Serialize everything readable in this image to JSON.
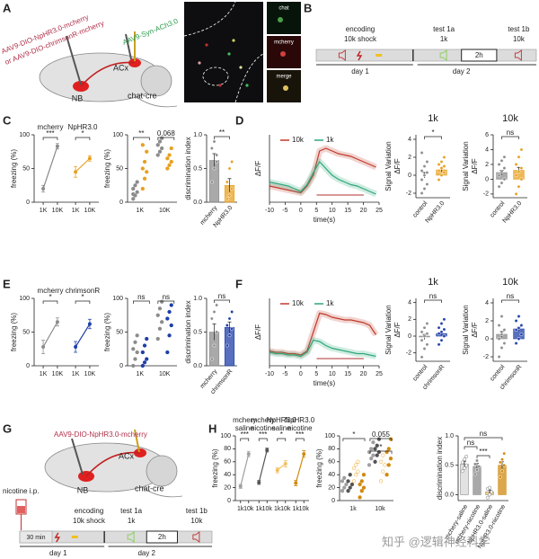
{
  "panels": {
    "A": {
      "label": "A",
      "virus1": "AAV9-DIO-NpHR3.0-mcherry",
      "virus2": "or AAV9-DIO-chrimsonR-mcherry",
      "virus3": "AAV9-Syn-ACh3.0",
      "acx": "ACx",
      "nb": "NB",
      "mouse": "chat-cre",
      "images": [
        "chat",
        "mcherry",
        "merge"
      ]
    },
    "B": {
      "label": "B",
      "encoding": "encoding",
      "shock": "10k shock",
      "test1a": "test 1a",
      "tone1a": "1k",
      "gap": "2h",
      "test1b": "test 1b",
      "tone1b": "10k",
      "day1": "day 1",
      "day2": "day 2"
    },
    "C": {
      "label": "C",
      "line": {
        "type": "pair",
        "ylabel": "freezing (%)",
        "ylim": [
          0,
          100
        ],
        "yticks": [
          0,
          50,
          100
        ],
        "xcats": [
          "1K",
          "10K"
        ],
        "series": [
          {
            "name": [
              "mcherry"
            ],
            "color": "#8c8c8c",
            "values": [
              20,
              83
            ],
            "err": [
              5,
              4
            ]
          },
          {
            "name": [
              "NpHR3.0"
            ],
            "color": "#e8a020",
            "values": [
              45,
              65
            ],
            "err": [
              8,
              4
            ]
          }
        ],
        "stars": [
          "***",
          "*"
        ]
      },
      "dots": {
        "type": "dots",
        "ylabel": "freezing (%)",
        "ylim": [
          0,
          100
        ],
        "yticks": [
          0,
          50,
          100
        ],
        "categories": [
          "1K",
          "10K"
        ],
        "series": [
          {
            "color": "#8c8c8c",
            "points": [
              [
                5,
                10,
                15,
                20,
                25,
                30,
                12
              ],
              [
                70,
                75,
                80,
                85,
                90,
                95
              ]
            ]
          },
          {
            "color": "#e8a020",
            "points": [
              [
                20,
                35,
                45,
                50,
                60,
                75,
                85
              ],
              [
                50,
                55,
                60,
                65,
                70,
                80
              ]
            ]
          }
        ],
        "annotations": [
          "**",
          "0.068"
        ]
      },
      "bar": {
        "type": "bar",
        "ylabel": "discrimination index",
        "ylim": [
          0,
          1
        ],
        "yticks": [
          {
            "value": 0,
            "label": "0.0"
          },
          {
            "value": 0.5,
            "label": "0.5"
          },
          {
            "value": 1,
            "label": "1.0"
          }
        ],
        "categories": [
          "mcherry",
          "NpHR3.0"
        ],
        "colors": [
          "#8c8c8c",
          "#e8a020"
        ],
        "values": [
          0.62,
          0.25
        ],
        "err": [
          0.1,
          0.1
        ],
        "points": [
          [
            0.3,
            0.5,
            0.7,
            0.8,
            0.9,
            0.6
          ],
          [
            0.05,
            0.1,
            0.2,
            0.3,
            0.5,
            0.6
          ]
        ],
        "stars": [
          "**"
        ]
      }
    },
    "D": {
      "label": "D",
      "trace": {
        "type": "trace",
        "ylabel": "ΔF/F",
        "xlabel": "time(s)",
        "xlim": [
          -10,
          25
        ],
        "xticks": [
          -10,
          -5,
          0,
          5,
          10,
          15,
          20,
          25
        ],
        "ylim": [
          -1,
          4
        ],
        "x": [
          -10,
          -8,
          -6,
          -4,
          -2,
          0,
          2,
          4,
          6,
          8,
          10,
          12,
          14,
          16,
          18,
          20,
          22,
          24
        ],
        "series": [
          {
            "name": "10k",
            "color": "#c0392b",
            "values": [
              0.2,
              0.1,
              0,
              -0.1,
              -0.2,
              -0.3,
              0.2,
              1.0,
              2.8,
              3.0,
              2.8,
              2.6,
              2.5,
              2.4,
              2.2,
              2.0,
              1.8,
              1.6
            ]
          },
          {
            "name": "1k",
            "color": "#2ca87a",
            "values": [
              0.5,
              0.4,
              0.3,
              0.2,
              0,
              -0.2,
              0.3,
              1.2,
              2.0,
              1.5,
              1.0,
              0.7,
              0.5,
              0.3,
              0.2,
              0,
              -0.2,
              -0.4
            ]
          }
        ]
      },
      "bar1k": {
        "type": "bar",
        "title": "1k",
        "ylabel": [
          "Signal Variation",
          "ΔF/F"
        ],
        "ylim": [
          -2.5,
          4.5
        ],
        "yticks": [
          -2,
          0,
          2,
          4
        ],
        "categories": [
          "control",
          "NpHR3.0"
        ],
        "colors": [
          "#8c8c8c",
          "#e8a020"
        ],
        "values": [
          0.0,
          0.6
        ],
        "err": [
          0.3,
          0.2
        ],
        "points": [
          [
            -2,
            -1.5,
            -1,
            -0.5,
            0,
            0.3,
            0.5,
            1,
            1.5,
            2.5
          ],
          [
            -0.5,
            0,
            0.3,
            0.5,
            0.8,
            1,
            1.2,
            1.5,
            2
          ]
        ],
        "stars": [
          "*"
        ]
      },
      "bar10k": {
        "type": "bar",
        "title": "10k",
        "ylabel": [
          "Signal Variation",
          "ΔF/F"
        ],
        "ylim": [
          -2.5,
          6
        ],
        "yticks": [
          -2,
          0,
          2,
          4,
          6
        ],
        "categories": [
          "control",
          "NpHR3.0"
        ],
        "colors": [
          "#8c8c8c",
          "#e8a020"
        ],
        "values": [
          0.9,
          1.2
        ],
        "err": [
          0.3,
          0.4
        ],
        "points": [
          [
            -1,
            -0.5,
            0,
            0.5,
            1,
            1.5,
            2,
            2.5,
            3
          ],
          [
            -2,
            -1,
            0,
            0.5,
            1,
            1.5,
            2,
            3,
            4
          ]
        ],
        "stars": [
          "ns"
        ]
      }
    },
    "E": {
      "label": "E",
      "line": {
        "type": "pair",
        "ylabel": "freezing (%)",
        "ylim": [
          0,
          100
        ],
        "yticks": [
          0,
          50,
          100
        ],
        "xcats": [
          "1K",
          "10K"
        ],
        "series": [
          {
            "name": [
              "mcherry"
            ],
            "color": "#8c8c8c",
            "values": [
              28,
              65
            ],
            "err": [
              10,
              6
            ]
          },
          {
            "name": [
              "chrimsonR"
            ],
            "color": "#1f3fa8",
            "values": [
              28,
              62
            ],
            "err": [
              8,
              7
            ]
          }
        ],
        "stars": [
          "*",
          "*"
        ]
      },
      "dots": {
        "type": "dots",
        "ylabel": "freezing (%)",
        "ylim": [
          0,
          100
        ],
        "yticks": [
          0,
          50,
          100
        ],
        "categories": [
          "1K",
          "10K"
        ],
        "series": [
          {
            "color": "#8c8c8c",
            "points": [
              [
                0,
                10,
                20,
                25,
                35,
                45
              ],
              [
                40,
                55,
                65,
                75,
                85,
                95
              ]
            ]
          },
          {
            "color": "#1f3fa8",
            "points": [
              [
                0,
                5,
                10,
                20,
                30,
                40
              ],
              [
                20,
                45,
                60,
                70,
                80,
                90
              ]
            ]
          }
        ],
        "annotations": [
          "ns",
          "ns"
        ]
      },
      "bar": {
        "type": "bar",
        "ylabel": "discrimination index",
        "ylim": [
          0,
          1
        ],
        "yticks": [
          {
            "value": 0,
            "label": "0.0"
          },
          {
            "value": 0.5,
            "label": "0.5"
          },
          {
            "value": 1,
            "label": "1.0"
          }
        ],
        "categories": [
          "mcherry",
          "chrimsonR"
        ],
        "colors": [
          "#8c8c8c",
          "#1f3fa8"
        ],
        "values": [
          0.5,
          0.57
        ],
        "err": [
          0.12,
          0.08
        ],
        "points": [
          [
            0.1,
            0.3,
            0.5,
            0.7,
            0.8,
            0.9
          ],
          [
            0.3,
            0.45,
            0.55,
            0.6,
            0.7,
            0.8
          ]
        ],
        "stars": [
          "ns"
        ]
      }
    },
    "F": {
      "label": "F",
      "trace": {
        "type": "trace",
        "ylabel": "ΔF/F",
        "xlabel": "time(s)",
        "xlim": [
          -10,
          25
        ],
        "xticks": [
          -10,
          -5,
          0,
          5,
          10,
          15,
          20,
          25
        ],
        "ylim": [
          -1,
          4
        ],
        "x": [
          -10,
          -8,
          -6,
          -4,
          -2,
          0,
          2,
          4,
          6,
          8,
          10,
          12,
          14,
          16,
          18,
          20,
          22,
          24
        ],
        "series": [
          {
            "name": "10k",
            "color": "#c0392b",
            "values": [
              0.1,
              0,
              0,
              -0.1,
              -0.1,
              -0.2,
              0.1,
              1.5,
              2.9,
              2.8,
              2.6,
              2.5,
              2.4,
              2.4,
              2.3,
              2.2,
              2.0,
              1.3
            ]
          },
          {
            "name": "1k",
            "color": "#2ca87a",
            "values": [
              0,
              -0.1,
              -0.1,
              -0.2,
              -0.2,
              -0.3,
              0,
              0.9,
              0.8,
              0.5,
              0.3,
              0.2,
              0.1,
              0,
              -0.1,
              -0.1,
              -0.2,
              -0.3
            ]
          }
        ]
      },
      "bar1k": {
        "type": "bar",
        "title": "1k",
        "ylabel": [
          "Signal Variation",
          "ΔF/F"
        ],
        "ylim": [
          -3,
          4.5
        ],
        "yticks": [
          -2,
          0,
          2,
          4
        ],
        "categories": [
          "control",
          "chrimsonR"
        ],
        "colors": [
          "#8c8c8c",
          "#1f3fa8"
        ],
        "values": [
          -0.1,
          0.3
        ],
        "err": [
          0.3,
          0.2
        ],
        "points": [
          [
            -2.5,
            -1.5,
            -1,
            -0.5,
            0,
            0.3,
            0.5,
            1,
            1.5
          ],
          [
            -1,
            -0.5,
            0,
            0.3,
            0.5,
            0.8,
            1,
            1.5,
            2
          ]
        ],
        "stars": [
          "ns"
        ]
      },
      "bar10k": {
        "type": "bar",
        "title": "10k",
        "ylabel": [
          "Signal Variation",
          "ΔF/F"
        ],
        "ylim": [
          -2.5,
          4.5
        ],
        "yticks": [
          -2,
          0,
          2,
          4
        ],
        "categories": [
          "control",
          "chrimsonR"
        ],
        "colors": [
          "#8c8c8c",
          "#1f3fa8"
        ],
        "values": [
          0.5,
          1.1
        ],
        "err": [
          0.3,
          0.2
        ],
        "points": [
          [
            -2,
            -1,
            -0.5,
            0,
            0.5,
            1,
            1.5,
            2.5
          ],
          [
            -0.5,
            0,
            0.5,
            1,
            1.2,
            1.5,
            2,
            2.5
          ]
        ],
        "stars": [
          "ns"
        ]
      }
    },
    "G": {
      "label": "G",
      "virus": "AAV9-DIO-NpHR3.0-mcherry",
      "acx": "ACx",
      "nb": "NB",
      "mouse": "chat-cre",
      "drug": "nicotine i.p.",
      "wait": "30 min",
      "encoding": "encoding",
      "shock": "10k shock",
      "test1a": "test 1a",
      "tone1a": "1k",
      "gap": "2h",
      "test1b": "test 1b",
      "tone1b": "10k",
      "day1": "day 1",
      "day2": "day 2"
    },
    "H": {
      "label": "H",
      "line": {
        "type": "pair",
        "ylabel": "freezing (%)",
        "ylim": [
          0,
          100
        ],
        "yticks": [
          0,
          20,
          40,
          60,
          80,
          100
        ],
        "xcats": [
          "1k",
          "10k"
        ],
        "series": [
          {
            "name": [
              "mchery",
              "saline"
            ],
            "color": "#a0a0a0",
            "values": [
              22,
              72
            ],
            "err": [
              3,
              4
            ]
          },
          {
            "name": [
              "mchery",
              "nicotine"
            ],
            "color": "#555555",
            "values": [
              28,
              78
            ],
            "err": [
              3,
              3
            ]
          },
          {
            "name": [
              "NpHR3.0",
              "saline"
            ],
            "color": "#f0c060",
            "values": [
              47,
              57
            ],
            "err": [
              4,
              5
            ]
          },
          {
            "name": [
              "NpHR3.0",
              "nicotine"
            ],
            "color": "#d08a10",
            "values": [
              27,
              72
            ],
            "err": [
              4,
              5
            ]
          }
        ],
        "stars": [
          "***",
          "***",
          "*",
          "***"
        ]
      },
      "dots": {
        "type": "dots",
        "ylabel": "freezing (%)",
        "ylim": [
          0,
          100
        ],
        "yticks": [
          0,
          20,
          40,
          60,
          80,
          100
        ],
        "categories": [
          "1k",
          "10k"
        ],
        "series": [
          {
            "color": "#a0a0a0",
            "points": [
              [
                15,
                20,
                25,
                30,
                35
              ],
              [
                55,
                65,
                70,
                75,
                80,
                90
              ]
            ]
          },
          {
            "color": "#555555",
            "points": [
              [
                15,
                20,
                25,
                30,
                40
              ],
              [
                60,
                70,
                75,
                80,
                85,
                95
              ]
            ]
          },
          {
            "color": "#f0c060",
            "points": [
              [
                30,
                40,
                45,
                50,
                55,
                60
              ],
              [
                30,
                45,
                55,
                60,
                70
              ]
            ]
          },
          {
            "color": "#d08a10",
            "points": [
              [
                5,
                15,
                20,
                25,
                30,
                40
              ],
              [
                40,
                55,
                65,
                75,
                80,
                95
              ]
            ]
          }
        ],
        "annotations": [
          "*",
          "0.055",
          "*"
        ]
      },
      "bar": {
        "type": "bar",
        "ylabel": "discrimination index",
        "ylim": [
          -0.1,
          1
        ],
        "yticks": [
          {
            "value": 0,
            "label": "0.0"
          },
          {
            "value": 0.5,
            "label": "0.5"
          },
          {
            "value": 1,
            "label": "1.0"
          }
        ],
        "categories": [
          "mchery-saline",
          "mchery-nicotine",
          "NpHR3.0-saline",
          "NpHR3.0-nicotine"
        ],
        "colors": [
          "#d8d8d8",
          "#8c8c8c",
          "#f0c060",
          "#d08a10"
        ],
        "values": [
          0.52,
          0.48,
          0.05,
          0.5
        ],
        "err": [
          0.05,
          0.05,
          0.03,
          0.06
        ],
        "points": [
          [
            0.4,
            0.45,
            0.5,
            0.55,
            0.6,
            0.65
          ],
          [
            0.35,
            0.42,
            0.48,
            0.52,
            0.58
          ],
          [
            -0.05,
            0,
            0.05,
            0.1,
            0.12
          ],
          [
            0.3,
            0.4,
            0.5,
            0.55,
            0.6,
            0.7
          ]
        ],
        "stars": [
          "ns",
          "ns",
          "***"
        ]
      }
    },
    "watermark": "知乎 @逻辑神经科学"
  }
}
